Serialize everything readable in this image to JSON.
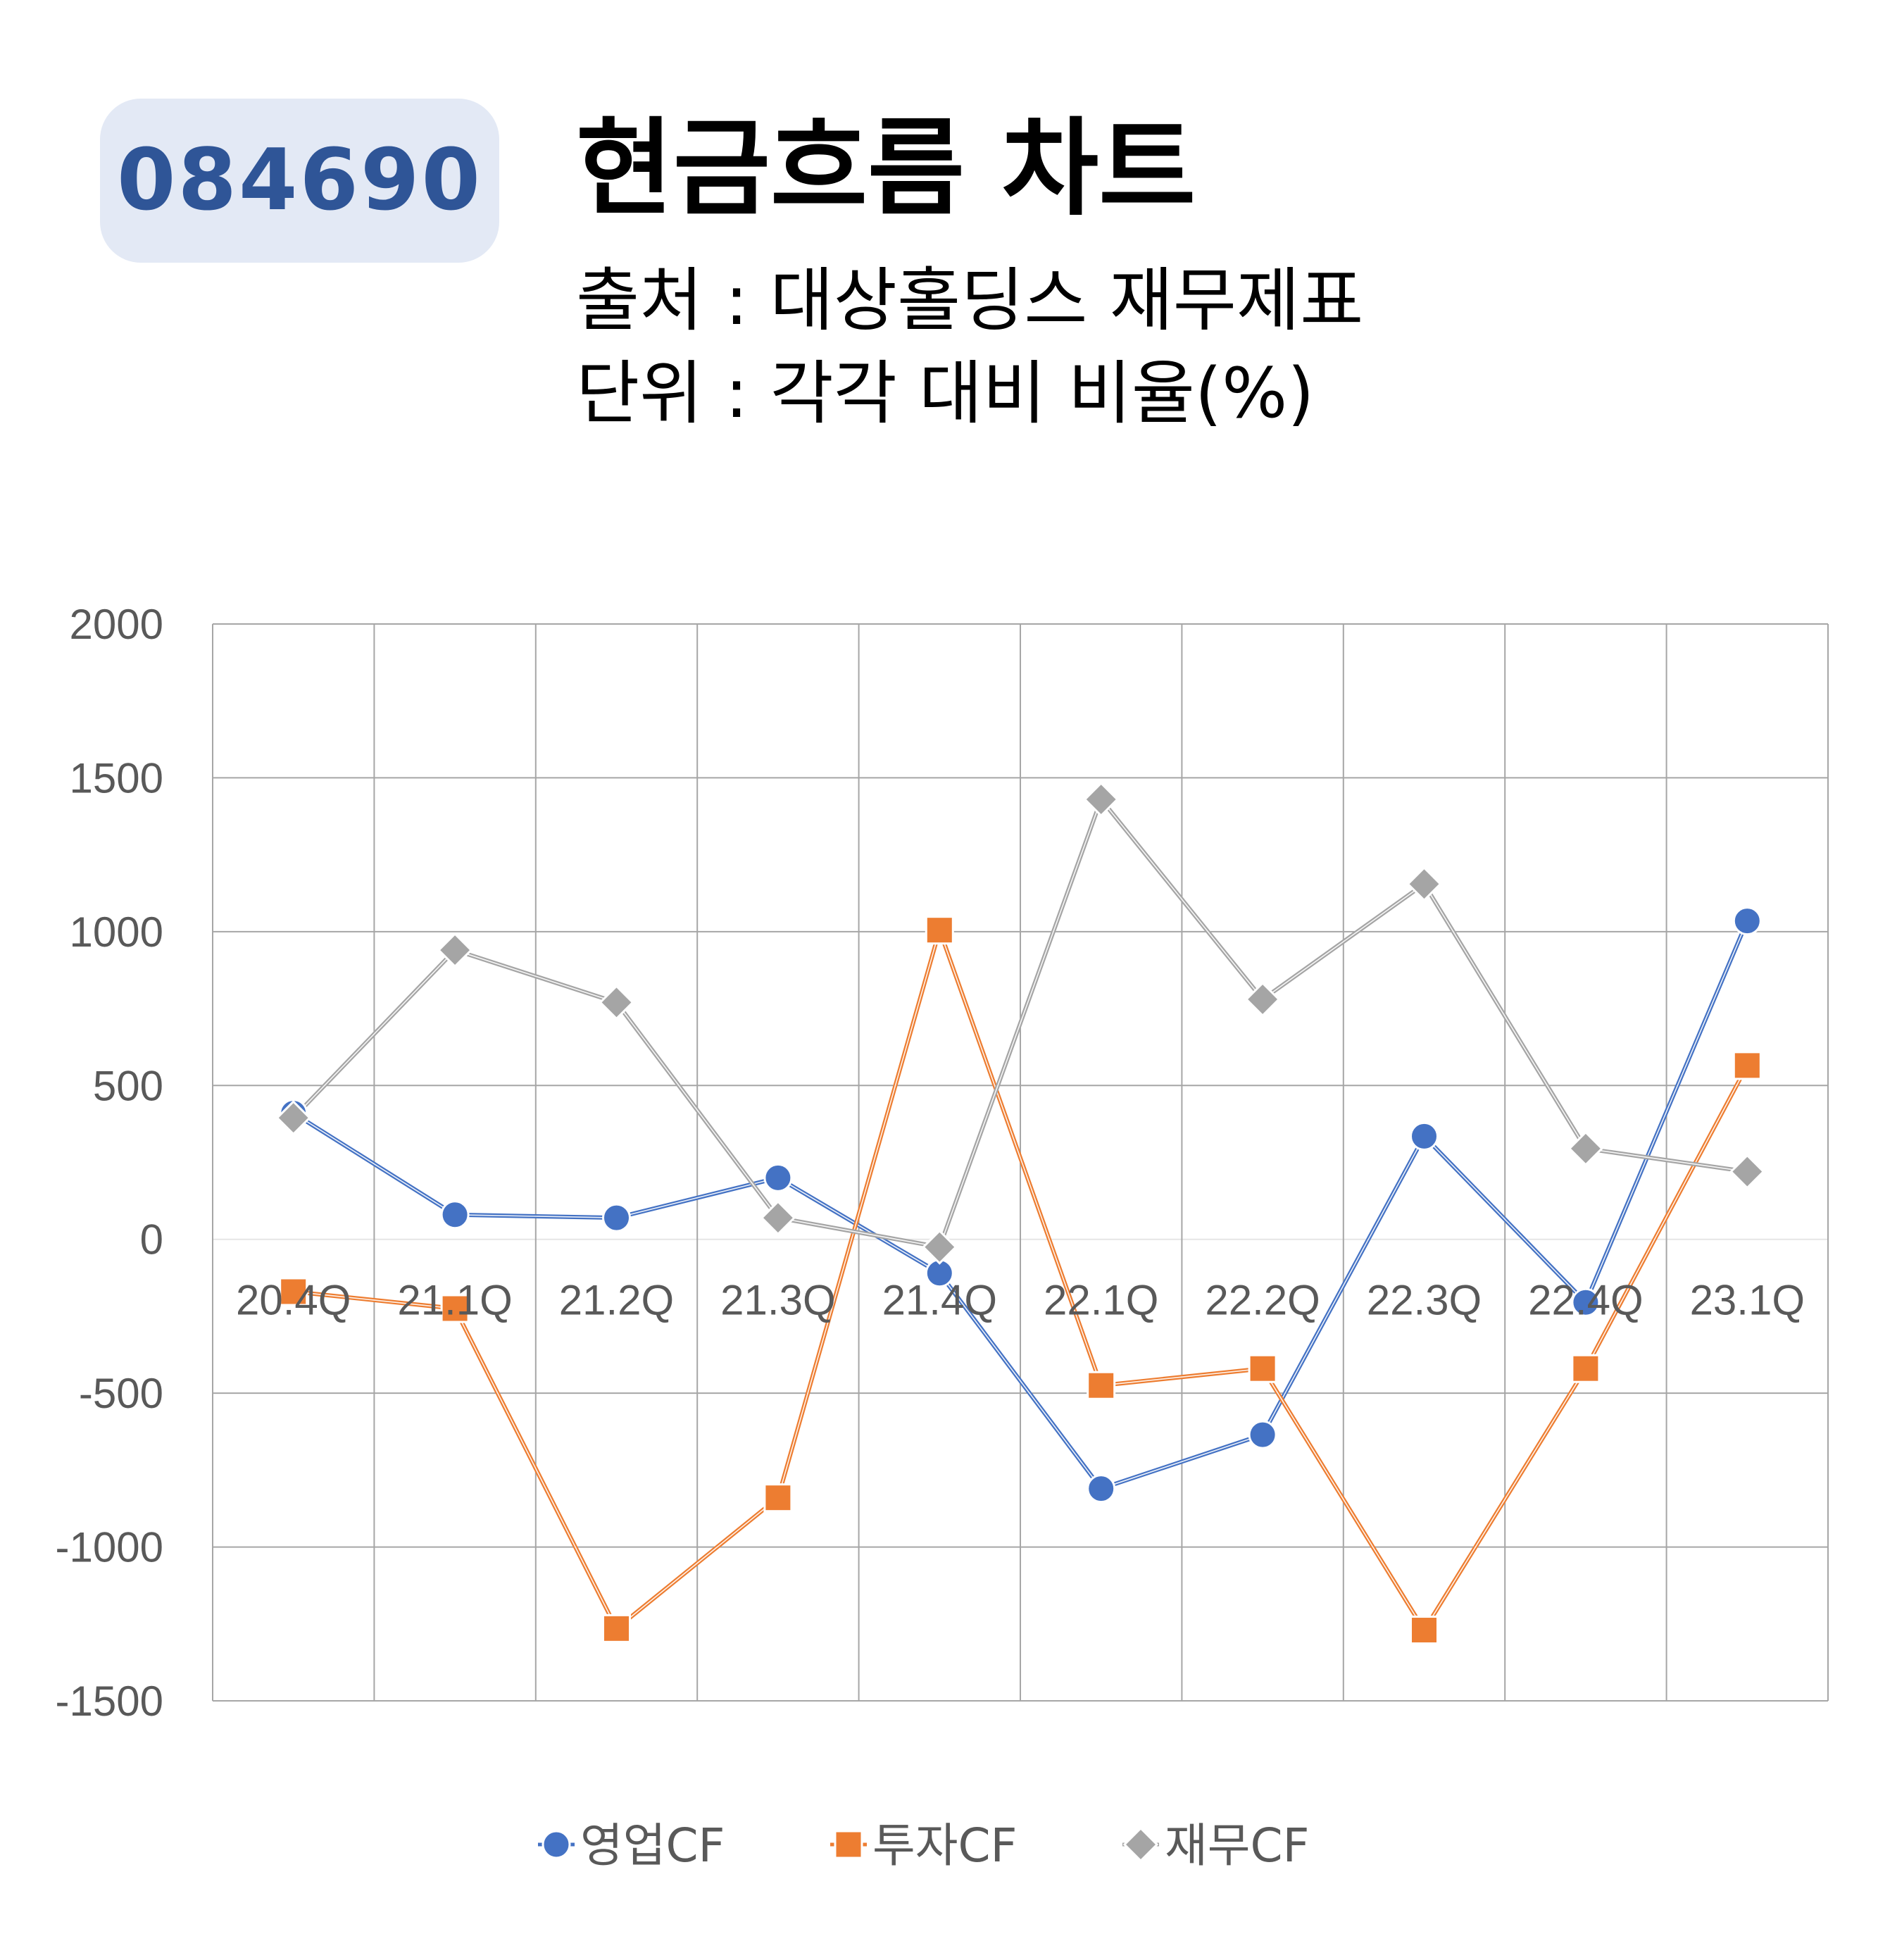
{
  "badge": {
    "code": "084690"
  },
  "header": {
    "title": "현금흐름 차트",
    "source": "출처 : 대상홀딩스 재무제표",
    "unit": "단위 : 각각 대비 비율(%)"
  },
  "colors": {
    "operating": "#4472c4",
    "investing": "#ed7d31",
    "financing": "#a5a5a5",
    "grid": "#a6a6a6",
    "zero_line": "#e6e6e6",
    "badge_bg": "#e3e9f5",
    "badge_text": "#2f5597"
  },
  "chart_data": {
    "type": "line",
    "categories": [
      "20.4Q",
      "21.1Q",
      "21.2Q",
      "21.3Q",
      "21.4Q",
      "22.1Q",
      "22.2Q",
      "22.3Q",
      "22.4Q",
      "23.1Q"
    ],
    "ylim": [
      -1500,
      2000
    ],
    "yticks": [
      2000,
      1500,
      1000,
      500,
      0,
      -500,
      -1000,
      -1500
    ],
    "grid": true,
    "legend_position": "bottom",
    "series": [
      {
        "name": "영업CF",
        "marker": "circle",
        "color": "#4472c4",
        "values": [
          410,
          80,
          70,
          200,
          -110,
          -810,
          -635,
          335,
          -205,
          1035
        ]
      },
      {
        "name": "투자CF",
        "marker": "square",
        "color": "#ed7d31",
        "values": [
          -170,
          -225,
          -1265,
          -840,
          1005,
          -475,
          -420,
          -1270,
          -420,
          565
        ]
      },
      {
        "name": "재무CF",
        "marker": "diamond",
        "color": "#a5a5a5",
        "values": [
          395,
          940,
          770,
          70,
          -25,
          1430,
          780,
          1155,
          295,
          220
        ]
      }
    ]
  }
}
